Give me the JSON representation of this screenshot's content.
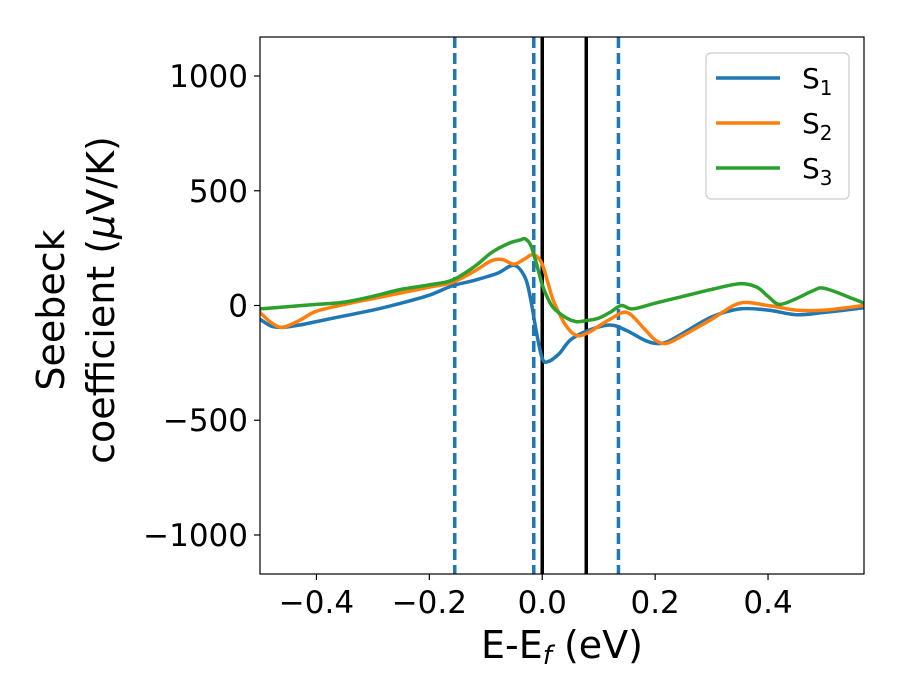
{
  "chart_data": {
    "type": "line",
    "xlabel": {
      "main": "E-E",
      "sub": "f",
      "suffix": " (eV)"
    },
    "ylabel": {
      "line1": "Seebeck",
      "line2_pre": "coefficient  (",
      "line2_mu": "μ",
      "line2_post": "V/K)"
    },
    "xlim": [
      -0.5,
      0.57
    ],
    "ylim": [
      -1170,
      1170
    ],
    "xticks": [
      {
        "value": -0.4,
        "label": "−0.4"
      },
      {
        "value": -0.2,
        "label": "−0.2"
      },
      {
        "value": 0.0,
        "label": "0.0"
      },
      {
        "value": 0.2,
        "label": "0.2"
      },
      {
        "value": 0.4,
        "label": "0.4"
      }
    ],
    "yticks": [
      {
        "value": -1000,
        "label": "−1000"
      },
      {
        "value": -500,
        "label": "−500"
      },
      {
        "value": 0,
        "label": "0"
      },
      {
        "value": 500,
        "label": "500"
      },
      {
        "value": 1000,
        "label": "1000"
      }
    ],
    "grid": false,
    "legend_position": "top-right",
    "vlines": [
      {
        "x": -0.155,
        "style": "dashed",
        "color": "#1f77b4"
      },
      {
        "x": -0.015,
        "style": "dashed",
        "color": "#1f77b4"
      },
      {
        "x": 0.135,
        "style": "dashed",
        "color": "#1f77b4"
      },
      {
        "x": 0.0,
        "style": "solid",
        "color": "#000000"
      },
      {
        "x": 0.078,
        "style": "solid",
        "color": "#000000"
      }
    ],
    "series": [
      {
        "name": "S",
        "sub": "1",
        "color": "#1f77b4",
        "x": [
          -0.5,
          -0.48,
          -0.46,
          -0.43,
          -0.4,
          -0.35,
          -0.3,
          -0.25,
          -0.2,
          -0.16,
          -0.12,
          -0.08,
          -0.05,
          -0.03,
          -0.02,
          -0.01,
          0.0,
          0.01,
          0.03,
          0.05,
          0.08,
          0.12,
          0.15,
          0.18,
          0.2,
          0.22,
          0.25,
          0.3,
          0.35,
          0.4,
          0.45,
          0.5,
          0.57
        ],
        "y": [
          -60,
          -90,
          -95,
          -85,
          -70,
          -45,
          -20,
          10,
          45,
          85,
          110,
          140,
          175,
          120,
          20,
          -120,
          -230,
          -245,
          -210,
          -150,
          -110,
          -85,
          -110,
          -150,
          -165,
          -160,
          -120,
          -50,
          -15,
          -20,
          -40,
          -30,
          -10
        ]
      },
      {
        "name": "S",
        "sub": "2",
        "color": "#ff7f0e",
        "x": [
          -0.5,
          -0.48,
          -0.46,
          -0.43,
          -0.4,
          -0.35,
          -0.3,
          -0.25,
          -0.2,
          -0.16,
          -0.12,
          -0.09,
          -0.07,
          -0.05,
          -0.03,
          -0.02,
          -0.01,
          0.0,
          0.01,
          0.02,
          0.04,
          0.06,
          0.08,
          0.1,
          0.12,
          0.15,
          0.18,
          0.2,
          0.22,
          0.25,
          0.3,
          0.35,
          0.4,
          0.45,
          0.5,
          0.57
        ],
        "y": [
          -30,
          -75,
          -95,
          -65,
          -25,
          5,
          30,
          55,
          80,
          100,
          150,
          195,
          200,
          180,
          205,
          220,
          215,
          180,
          100,
          20,
          -80,
          -130,
          -120,
          -90,
          -60,
          -30,
          -100,
          -150,
          -165,
          -130,
          -60,
          10,
          0,
          -20,
          -20,
          0
        ]
      },
      {
        "name": "S",
        "sub": "3",
        "color": "#2ca02c",
        "x": [
          -0.5,
          -0.45,
          -0.4,
          -0.35,
          -0.3,
          -0.25,
          -0.2,
          -0.16,
          -0.12,
          -0.09,
          -0.06,
          -0.04,
          -0.03,
          -0.02,
          -0.01,
          0.0,
          0.01,
          0.02,
          0.04,
          0.06,
          0.08,
          0.1,
          0.12,
          0.14,
          0.16,
          0.2,
          0.25,
          0.3,
          0.35,
          0.38,
          0.4,
          0.42,
          0.45,
          0.48,
          0.5,
          0.55,
          0.57
        ],
        "y": [
          -15,
          -5,
          5,
          15,
          40,
          70,
          90,
          110,
          170,
          230,
          270,
          285,
          290,
          260,
          180,
          90,
          30,
          -10,
          -50,
          -70,
          -65,
          -55,
          -30,
          0,
          -15,
          10,
          40,
          70,
          95,
          80,
          40,
          5,
          30,
          65,
          75,
          30,
          10
        ]
      }
    ]
  }
}
